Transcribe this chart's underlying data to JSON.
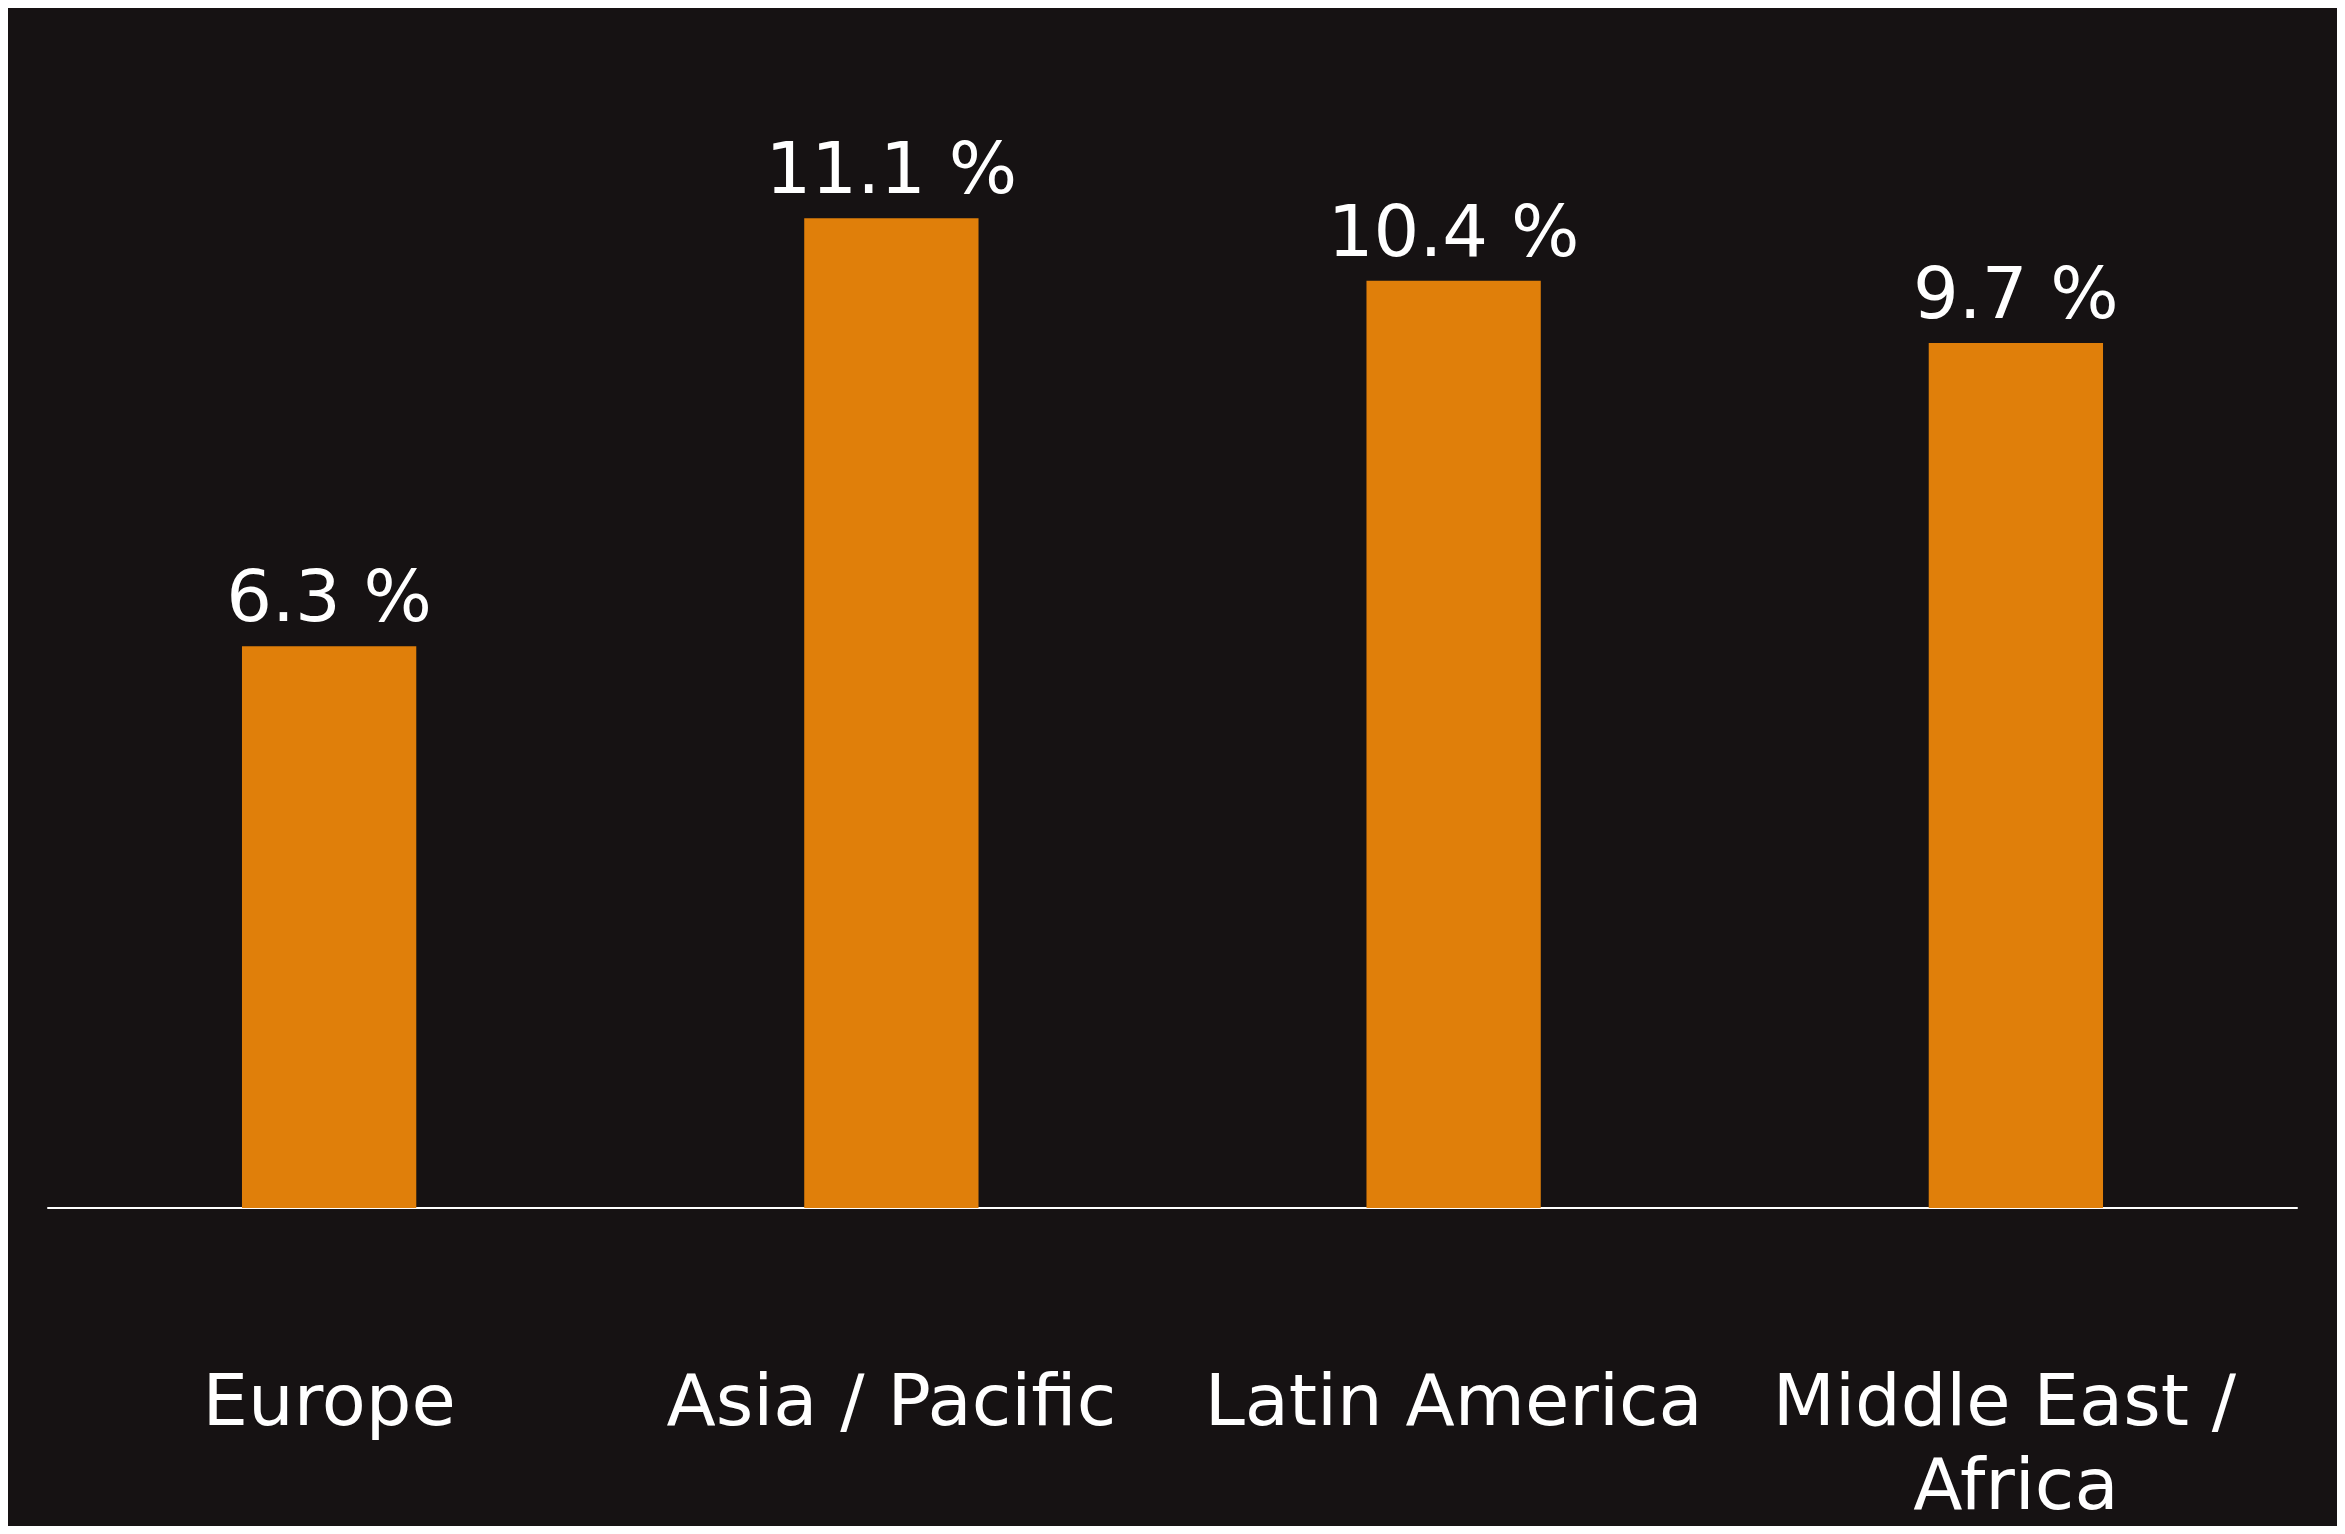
{
  "chart_data": {
    "type": "bar",
    "categories": [
      "Europe",
      "Asia / Pacific",
      "Latin America",
      "Middle East / Africa"
    ],
    "values": [
      6.3,
      11.1,
      10.4,
      9.7
    ],
    "value_labels": [
      "6.3 %",
      "11.1 %",
      "10.4 %",
      "9.7 %"
    ],
    "color": "#e07f0a",
    "grid": false,
    "tick_labels": "x"
  }
}
